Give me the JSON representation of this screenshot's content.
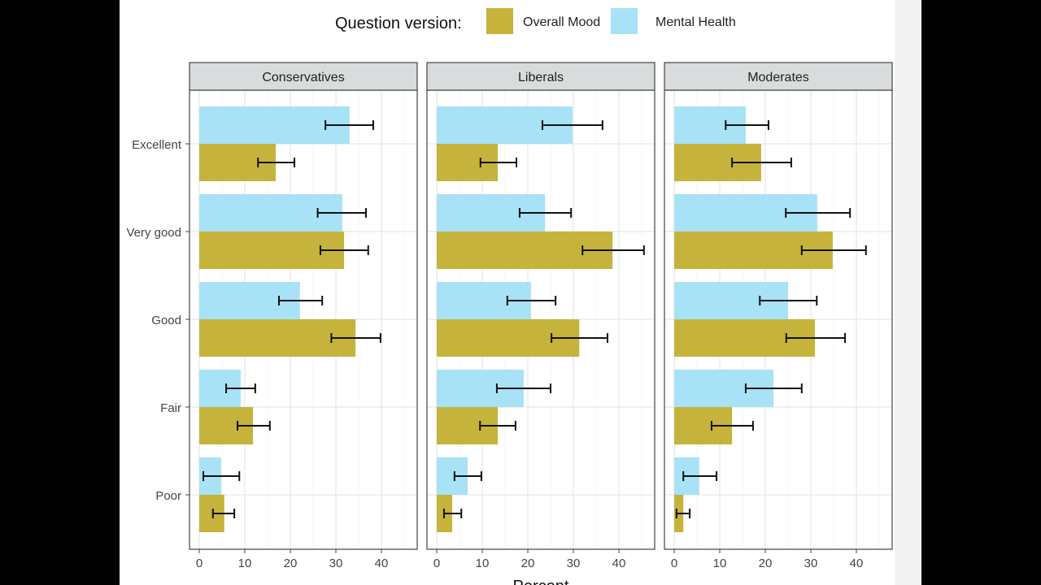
{
  "chart_data": {
    "type": "bar",
    "orientation": "horizontal",
    "legend": {
      "title": "Question version:",
      "placement": "top",
      "entries": [
        "Overall Mood",
        "Mental Health"
      ]
    },
    "colors": {
      "Overall Mood": "#c6b33b",
      "Mental Health": "#a7e2f6"
    },
    "xlabel": "Percent",
    "ylabel": "",
    "xlim": [
      0,
      46
    ],
    "xticks": [
      0,
      10,
      20,
      30,
      40
    ],
    "grid": true,
    "error_bars": true,
    "categories": [
      "Excellent",
      "Very good",
      "Good",
      "Fair",
      "Poor"
    ],
    "panels": [
      {
        "name": "Conservatives",
        "series": [
          {
            "name": "Mental Health",
            "values": [
              33,
              31.4,
              22.1,
              9.1,
              4.8
            ],
            "lower": [
              27.7,
              26,
              17.5,
              5.9,
              0.9
            ],
            "upper": [
              38.2,
              36.6,
              27,
              12.3,
              8.8
            ]
          },
          {
            "name": "Overall Mood",
            "values": [
              16.8,
              31.8,
              34.3,
              11.8,
              5.5
            ],
            "lower": [
              12.9,
              26.6,
              29,
              8.4,
              3
            ],
            "upper": [
              20.9,
              37.1,
              39.8,
              15.5,
              7.7
            ]
          }
        ]
      },
      {
        "name": "Liberals",
        "series": [
          {
            "name": "Mental Health",
            "values": [
              29.8,
              23.8,
              20.7,
              19.1,
              6.8
            ],
            "lower": [
              23.2,
              18.2,
              15.5,
              13.2,
              3.9
            ],
            "upper": [
              36.4,
              29.5,
              26.1,
              25,
              9.8
            ]
          },
          {
            "name": "Overall Mood",
            "values": [
              13.4,
              38.6,
              31.3,
              13.4,
              3.4
            ],
            "lower": [
              9.6,
              32,
              25.2,
              9.5,
              1.6
            ],
            "upper": [
              17.5,
              45.5,
              37.5,
              17.3,
              5.4
            ]
          }
        ]
      },
      {
        "name": "Moderates",
        "series": [
          {
            "name": "Mental Health",
            "values": [
              15.7,
              31.4,
              25,
              21.8,
              5.5
            ],
            "lower": [
              11.3,
              24.5,
              18.8,
              15.7,
              2
            ],
            "upper": [
              20.7,
              38.6,
              31.3,
              28,
              9.3
            ]
          },
          {
            "name": "Overall Mood",
            "values": [
              19.1,
              34.8,
              30.9,
              12.7,
              2
            ],
            "lower": [
              12.7,
              28,
              24.6,
              8.2,
              0.5
            ],
            "upper": [
              25.7,
              42.1,
              37.5,
              17.3,
              3.4
            ]
          }
        ]
      }
    ]
  }
}
